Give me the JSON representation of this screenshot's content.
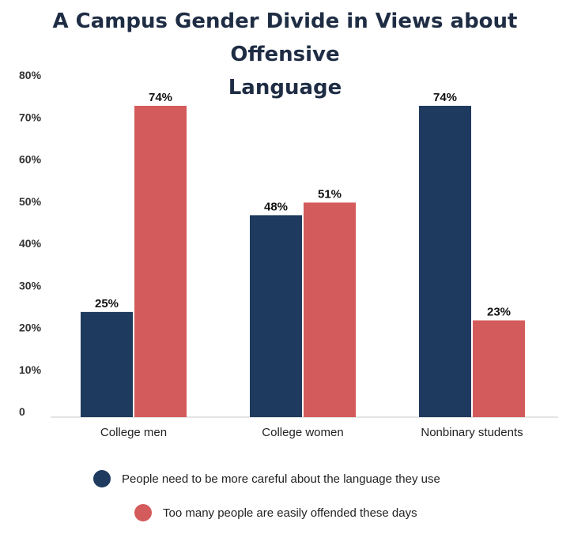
{
  "chart_data": {
    "type": "bar",
    "title": "A Campus Gender Divide in Views about Offensive Language",
    "categories": [
      "College men",
      "College women",
      "Nonbinary students"
    ],
    "series": [
      {
        "name": "People need to be more careful about the language they use",
        "values": [
          25,
          48,
          74
        ],
        "labels": [
          "25%",
          "48%",
          "74%"
        ],
        "color": "#1f3a5f"
      },
      {
        "name": "Too many people are easily offended these days",
        "values": [
          74,
          51,
          23
        ],
        "labels": [
          "74%",
          "51%",
          "23%"
        ],
        "color": "#d45b5b"
      }
    ],
    "ylim": [
      0,
      80
    ],
    "yticks": [
      0,
      10,
      20,
      30,
      40,
      50,
      60,
      70,
      80
    ],
    "ytick_labels": [
      "0",
      "10%",
      "20%",
      "30%",
      "40%",
      "50%",
      "60%",
      "70%",
      "80%"
    ],
    "grid": false,
    "legend_position": "bottom"
  }
}
